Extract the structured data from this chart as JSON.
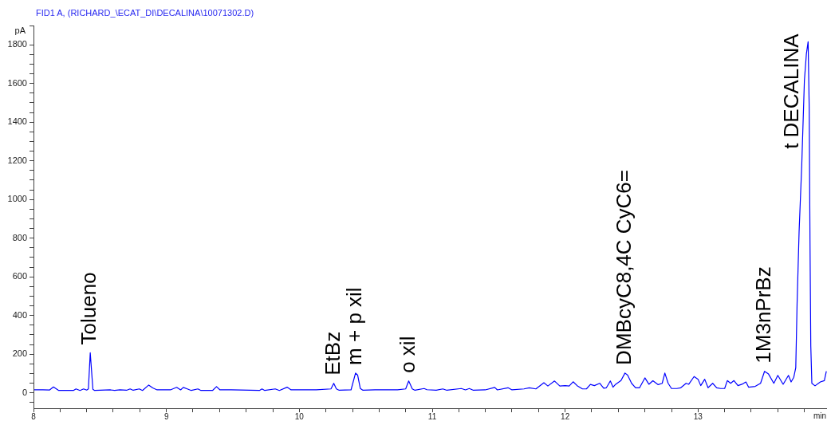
{
  "chart_data": {
    "type": "line",
    "title": "FID1 A, (RICHARD_\\ECAT_DI\\DECALINA\\10071302.D)",
    "ylabel": "pA",
    "xlabel": "min",
    "x": [
      8.006,
      8.07,
      8.12,
      8.15,
      8.19,
      8.3,
      8.32,
      8.35,
      8.377,
      8.4,
      8.413,
      8.427,
      8.447,
      8.46,
      8.58,
      8.61,
      8.65,
      8.7,
      8.727,
      8.75,
      8.796,
      8.82,
      8.867,
      8.897,
      8.93,
      9.03,
      9.077,
      9.107,
      9.127,
      9.157,
      9.187,
      9.237,
      9.26,
      9.347,
      9.377,
      9.403,
      9.487,
      9.7,
      9.719,
      9.74,
      9.819,
      9.85,
      9.908,
      9.938,
      10.128,
      10.238,
      10.259,
      10.279,
      10.3,
      10.389,
      10.423,
      10.439,
      10.459,
      10.479,
      10.569,
      10.739,
      10.8,
      10.823,
      10.85,
      10.87,
      10.939,
      10.96,
      11.03,
      11.08,
      11.11,
      11.219,
      11.25,
      11.279,
      11.31,
      11.399,
      11.47,
      11.49,
      11.57,
      11.6,
      11.69,
      11.73,
      11.78,
      11.84,
      11.87,
      11.92,
      11.96,
      12.0,
      12.03,
      12.06,
      12.09,
      12.13,
      12.16,
      12.19,
      12.22,
      12.26,
      12.29,
      12.31,
      12.34,
      12.36,
      12.38,
      12.42,
      12.45,
      12.47,
      12.5,
      12.53,
      12.56,
      12.6,
      12.63,
      12.66,
      12.7,
      12.73,
      12.75,
      12.775,
      12.8,
      12.84,
      12.87,
      12.91,
      12.93,
      12.97,
      13.0,
      13.02,
      13.05,
      13.075,
      13.11,
      13.14,
      13.17,
      13.2,
      13.22,
      13.245,
      13.27,
      13.3,
      13.33,
      13.36,
      13.38,
      13.43,
      13.47,
      13.5,
      13.53,
      13.57,
      13.6,
      13.64,
      13.68,
      13.7,
      13.72,
      13.735,
      13.745,
      13.76,
      13.78,
      13.8,
      13.815,
      13.828,
      13.836,
      13.842,
      13.848,
      13.856,
      13.88,
      13.92,
      13.95,
      13.965
    ],
    "series": [
      {
        "color": "#0000ff",
        "values": [
          15,
          15,
          14,
          30,
          12,
          12,
          20,
          12,
          20,
          14,
          20,
          207,
          18,
          12,
          15,
          12,
          15,
          13,
          20,
          13,
          20,
          12,
          40,
          25,
          15,
          15,
          28,
          15,
          28,
          20,
          12,
          20,
          12,
          12,
          32,
          15,
          15,
          12,
          20,
          12,
          20,
          12,
          29,
          15,
          15,
          20,
          49,
          20,
          13,
          15,
          102,
          91,
          22,
          13,
          15,
          15,
          20,
          61,
          20,
          13,
          22,
          16,
          13,
          20,
          13,
          22,
          15,
          22,
          13,
          15,
          28,
          15,
          26,
          15,
          20,
          26,
          20,
          52,
          35,
          61,
          35,
          37,
          35,
          57,
          37,
          20,
          20,
          43,
          37,
          49,
          24,
          26,
          61,
          29,
          44,
          63,
          102,
          91,
          49,
          26,
          26,
          77,
          44,
          62,
          42,
          49,
          102,
          49,
          22,
          22,
          26,
          49,
          44,
          84,
          70,
          37,
          70,
          26,
          49,
          26,
          22,
          22,
          63,
          49,
          63,
          37,
          44,
          56,
          29,
          33,
          49,
          111,
          97,
          49,
          90,
          44,
          90,
          56,
          80,
          130,
          462,
          833,
          1177,
          1616,
          1754,
          1816,
          1480,
          792,
          243,
          49,
          36,
          56,
          63,
          111
        ]
      }
    ],
    "xlim": [
      8,
      13.97
    ],
    "ylim": [
      -80,
      1900
    ],
    "xticks": [
      8,
      {
        "value": 8.2,
        "label": null
      },
      {
        "value": 8.4,
        "label": null
      },
      {
        "value": 8.6,
        "label": null
      },
      {
        "value": 8.8,
        "label": null
      },
      9,
      {
        "value": 9.2,
        "label": null
      },
      {
        "value": 9.4,
        "label": null
      },
      {
        "value": 9.6,
        "label": null
      },
      {
        "value": 9.8,
        "label": null
      },
      10,
      {
        "value": 10.2,
        "label": null
      },
      {
        "value": 10.4,
        "label": null
      },
      {
        "value": 10.6,
        "label": null
      },
      {
        "value": 10.8,
        "label": null
      },
      11,
      {
        "value": 11.2,
        "label": null
      },
      {
        "value": 11.4,
        "label": null
      },
      {
        "value": 11.6,
        "label": null
      },
      {
        "value": 11.8,
        "label": null
      },
      12,
      {
        "value": 12.2,
        "label": null
      },
      {
        "value": 12.4,
        "label": null
      },
      {
        "value": 12.6,
        "label": null
      },
      {
        "value": 12.8,
        "label": null
      },
      13,
      {
        "value": 13.2,
        "label": null
      },
      {
        "value": 13.4,
        "label": null
      },
      {
        "value": 13.6,
        "label": null
      },
      {
        "value": 13.8,
        "label": null
      }
    ],
    "yticks": [
      {
        "value": -50,
        "label": null
      },
      0,
      {
        "value": 50,
        "label": null
      },
      {
        "value": 100,
        "label": null
      },
      {
        "value": 150,
        "label": null
      },
      200,
      {
        "value": 250,
        "label": null
      },
      {
        "value": 300,
        "label": null
      },
      {
        "value": 350,
        "label": null
      },
      400,
      {
        "value": 450,
        "label": null
      },
      {
        "value": 500,
        "label": null
      },
      {
        "value": 550,
        "label": null
      },
      600,
      {
        "value": 650,
        "label": null
      },
      {
        "value": 700,
        "label": null
      },
      {
        "value": 750,
        "label": null
      },
      800,
      {
        "value": 850,
        "label": null
      },
      {
        "value": 900,
        "label": null
      },
      {
        "value": 950,
        "label": null
      },
      1000,
      {
        "value": 1050,
        "label": null
      },
      {
        "value": 1100,
        "label": null
      },
      {
        "value": 1150,
        "label": null
      },
      1200,
      {
        "value": 1250,
        "label": null
      },
      {
        "value": 1300,
        "label": null
      },
      {
        "value": 1350,
        "label": null
      },
      1400,
      {
        "value": 1450,
        "label": null
      },
      {
        "value": 1500,
        "label": null
      },
      {
        "value": 1550,
        "label": null
      },
      1600,
      {
        "value": 1650,
        "label": null
      },
      {
        "value": 1700,
        "label": null
      },
      {
        "value": 1750,
        "label": null
      },
      1800,
      {
        "value": 1900,
        "label": null
      }
    ],
    "annotations": [
      {
        "text": "Tolueno",
        "x": 8.427,
        "y": 207
      },
      {
        "text": "EtBz",
        "x": 10.259,
        "y": 49
      },
      {
        "text": "m + p xil",
        "x": 10.423,
        "y": 102
      },
      {
        "text": "o xil",
        "x": 10.823,
        "y": 61
      },
      {
        "text": "DMBcyC8,4C CyC6=",
        "x": 12.45,
        "y": 102
      },
      {
        "text": "1M3nPrBz",
        "x": 13.5,
        "y": 111
      },
      {
        "text": "t DECALINA",
        "x": 13.828,
        "y": 1816
      }
    ]
  }
}
